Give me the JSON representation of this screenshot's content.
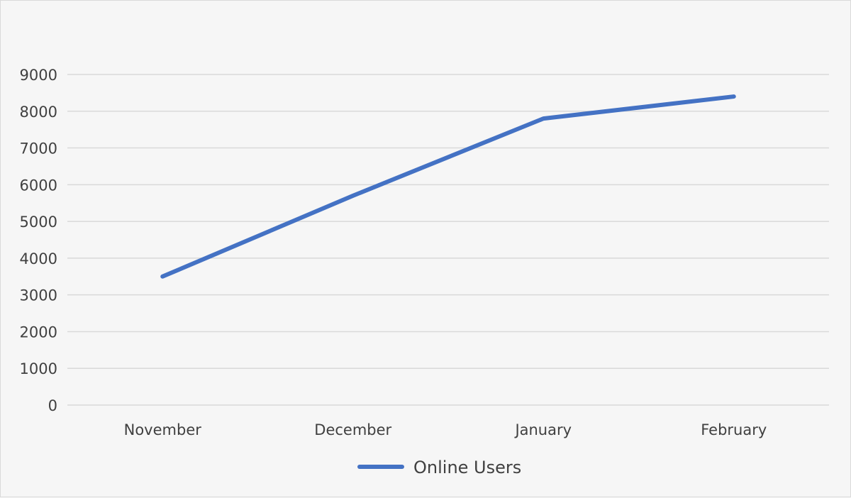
{
  "chart_data": {
    "type": "line",
    "categories": [
      "November",
      "December",
      "January",
      "February"
    ],
    "series": [
      {
        "name": "Online Users",
        "values": [
          3500,
          5700,
          7800,
          8400
        ],
        "color": "#4472c4"
      }
    ],
    "yticks": [
      0,
      1000,
      2000,
      3000,
      4000,
      5000,
      6000,
      7000,
      8000,
      9000
    ],
    "ylim": [
      0,
      9000
    ],
    "grid": true,
    "legend": "bottom",
    "colors": {
      "grid": "#d9d9d9",
      "text": "#404040",
      "background": "#f6f6f6"
    }
  }
}
